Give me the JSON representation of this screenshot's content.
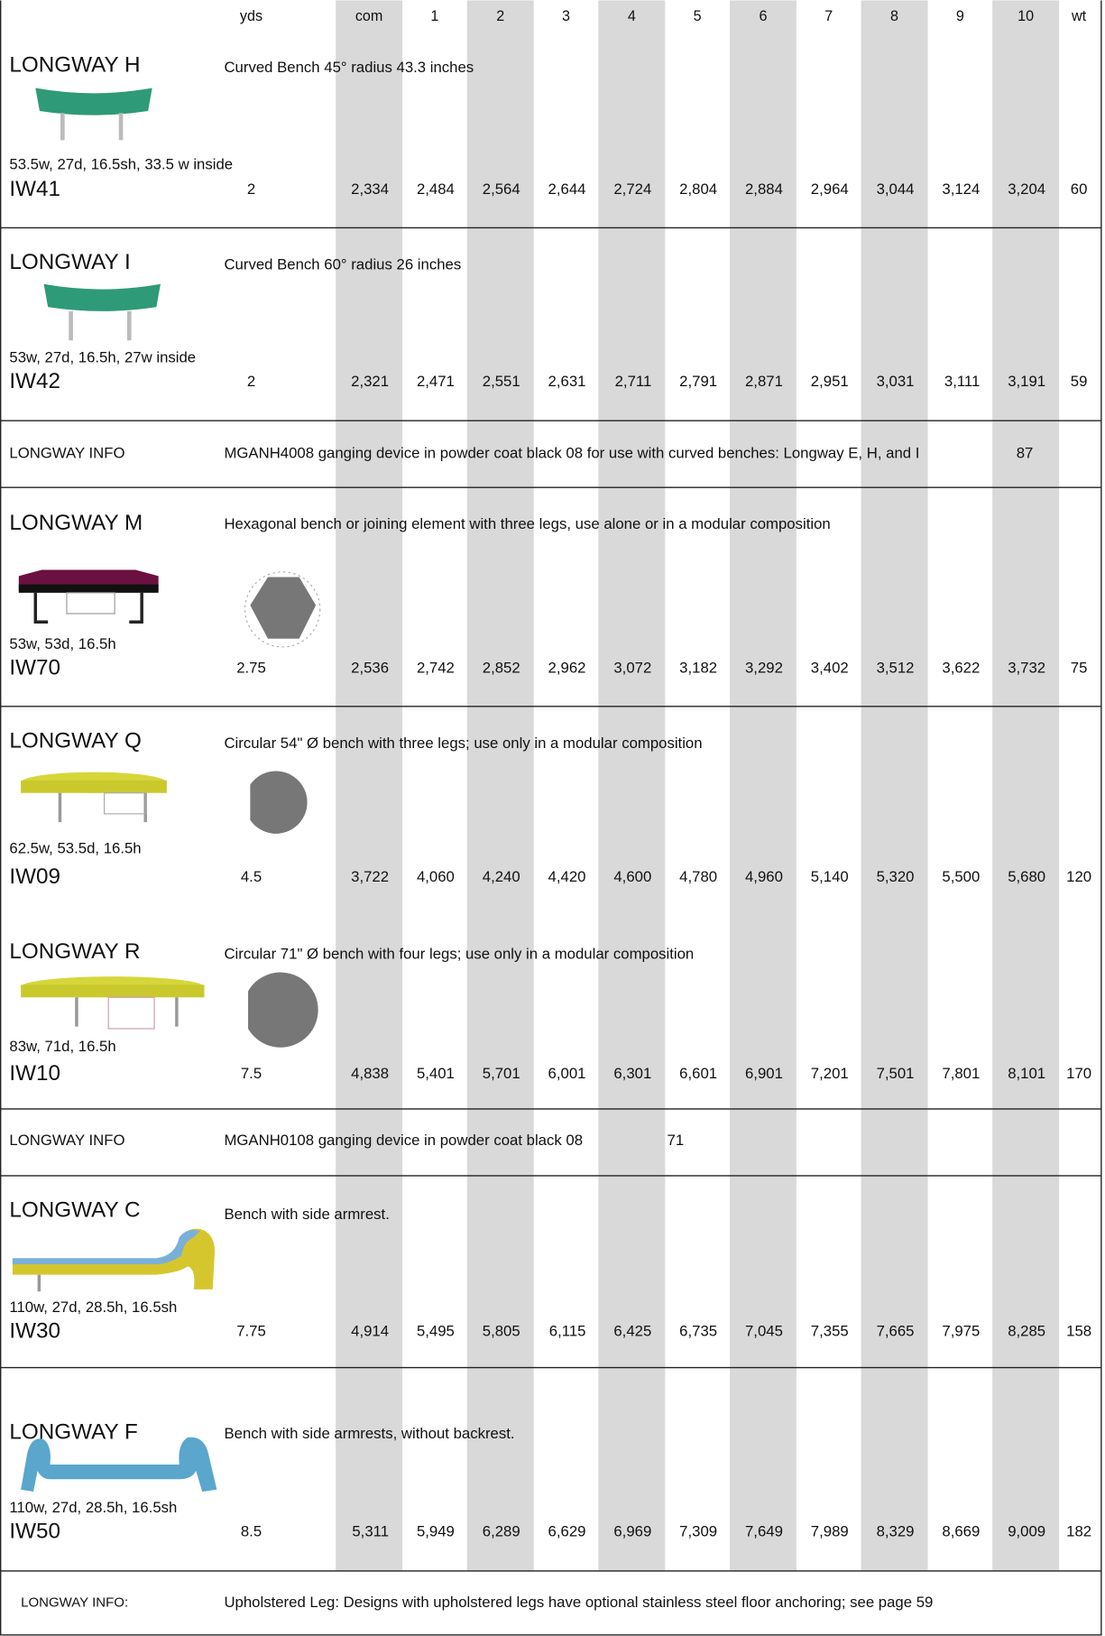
{
  "header": {
    "columns": [
      "yds",
      "com",
      "1",
      "2",
      "3",
      "4",
      "5",
      "6",
      "7",
      "8",
      "9",
      "10",
      "wt"
    ]
  },
  "products": [
    {
      "name": "LONGWAY H",
      "description": "Curved Bench 45° radius 43.3 inches",
      "dimensions": "53.5w, 27d, 16.5sh, 33.5 w inside",
      "code": "IW41",
      "yds": "2",
      "prices": [
        "2,334",
        "2,484",
        "2,564",
        "2,644",
        "2,724",
        "2,804",
        "2,884",
        "2,964",
        "3,044",
        "3,124",
        "3,204"
      ],
      "wt": "60"
    },
    {
      "name": "LONGWAY I",
      "description": "Curved Bench 60° radius 26 inches",
      "dimensions": "53w, 27d, 16.5h, 27w inside",
      "code": "IW42",
      "yds": "2",
      "prices": [
        "2,321",
        "2,471",
        "2,551",
        "2,631",
        "2,711",
        "2,791",
        "2,871",
        "2,951",
        "3,031",
        "3,111",
        "3,191"
      ],
      "wt": "59"
    },
    {
      "name": "LONGWAY M",
      "description": "Hexagonal bench or joining element with three legs, use alone or in a modular composition",
      "dimensions": "53w, 53d, 16.5h",
      "code": "IW70",
      "yds": "2.75",
      "prices": [
        "2,536",
        "2,742",
        "2,852",
        "2,962",
        "3,072",
        "3,182",
        "3,292",
        "3,402",
        "3,512",
        "3,622",
        "3,732"
      ],
      "wt": "75"
    },
    {
      "name": "LONGWAY Q",
      "description": "Circular 54\" Ø bench with three legs;  use only in a modular composition",
      "dimensions": "62.5w, 53.5d, 16.5h",
      "code": "IW09",
      "yds": "4.5",
      "prices": [
        "3,722",
        "4,060",
        "4,240",
        "4,420",
        "4,600",
        "4,780",
        "4,960",
        "5,140",
        "5,320",
        "5,500",
        "5,680"
      ],
      "wt": "120"
    },
    {
      "name": "LONGWAY R",
      "description": "Circular 71\" Ø bench with four legs;  use only in a modular composition",
      "dimensions": "83w, 71d, 16.5h",
      "code": "IW10",
      "yds": "7.5",
      "prices": [
        "4,838",
        "5,401",
        "5,701",
        "6,001",
        "6,301",
        "6,601",
        "6,901",
        "7,201",
        "7,501",
        "7,801",
        "8,101"
      ],
      "wt": "170"
    },
    {
      "name": "LONGWAY C",
      "description": "Bench with side armrest.",
      "dimensions": "110w, 27d, 28.5h, 16.5sh",
      "code": "IW30",
      "yds": "7.75",
      "prices": [
        "4,914",
        "5,495",
        "5,805",
        "6,115",
        "6,425",
        "6,735",
        "7,045",
        "7,355",
        "7,665",
        "7,975",
        "8,285"
      ],
      "wt": "158"
    },
    {
      "name": "LONGWAY F",
      "description": "Bench with side armrests, without backrest.",
      "dimensions": "110w, 27d, 28.5h, 16.5sh",
      "code": "IW50",
      "yds": "8.5",
      "prices": [
        "5,311",
        "5,949",
        "6,289",
        "6,629",
        "6,969",
        "7,309",
        "7,649",
        "7,989",
        "8,329",
        "8,669",
        "9,009"
      ],
      "wt": "182"
    }
  ],
  "info_rows": [
    {
      "label": "LONGWAY INFO",
      "text": "MGANH4008 ganging device in powder coat black 08 for use with curved benches:  Longway E, H, and  I",
      "price": "87"
    },
    {
      "label": "LONGWAY INFO",
      "text": "MGANH0108 ganging device in powder coat black 08",
      "price": "71"
    },
    {
      "label": "LONGWAY INFO:",
      "text": "Upholstered Leg:  Designs with upholstered legs have optional stainless steel floor anchoring; see page 59"
    }
  ]
}
